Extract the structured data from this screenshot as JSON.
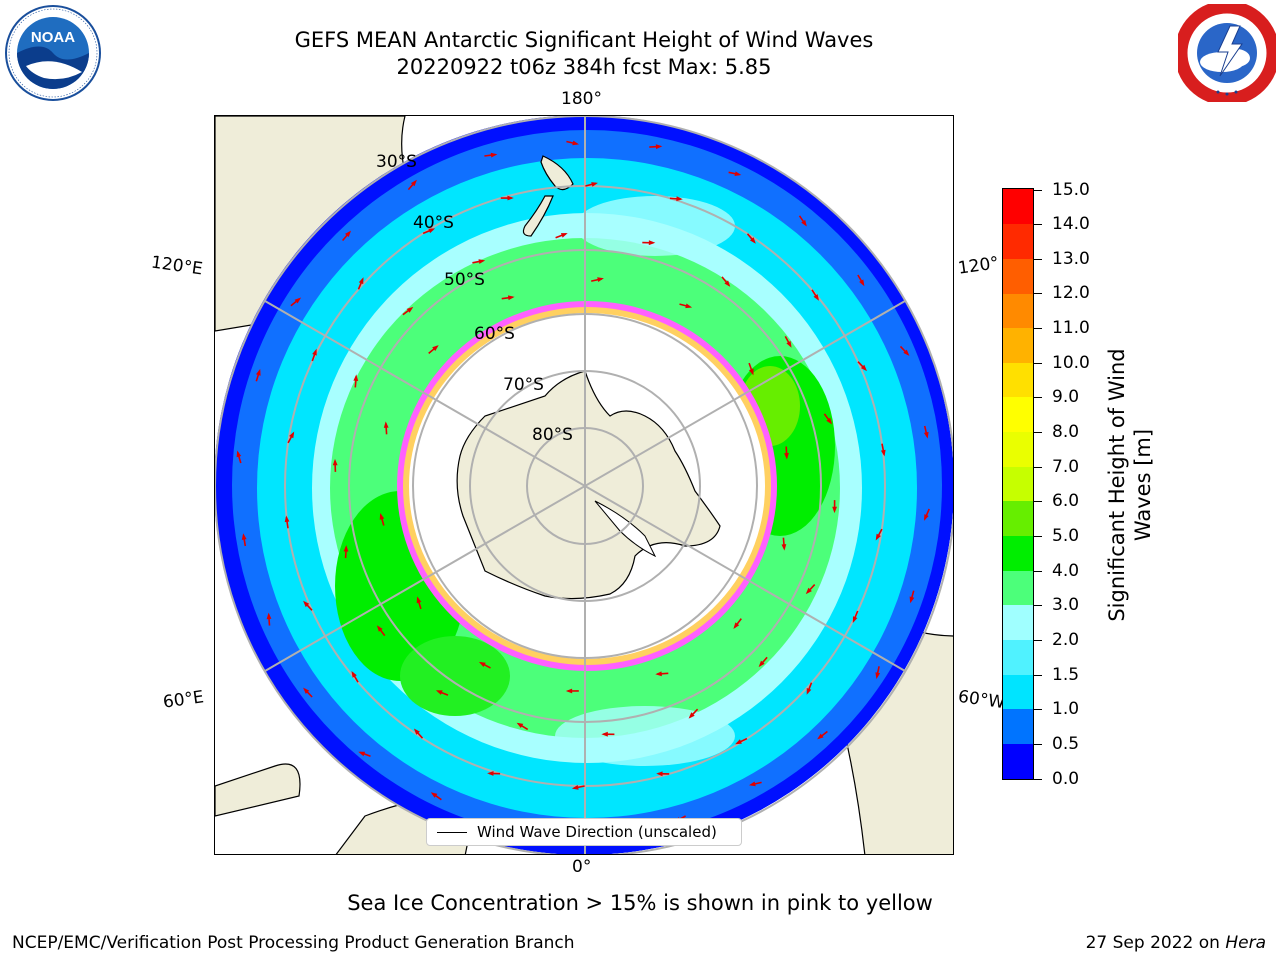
{
  "header": {
    "title_line1": "GEFS MEAN Antarctic Significant Height of Wind Waves",
    "title_line2": "20220922 t06z 384h fcst   Max: 5.85"
  },
  "logos": {
    "left": "NOAA",
    "right": "NATIONAL WEATHER SERVICE"
  },
  "map": {
    "projection": "south-polar-stereographic",
    "longitude_labels": {
      "top": "180°",
      "upper_left": "120°E",
      "upper_right": "120°",
      "lower_left": "60°E",
      "lower_right": "60°W",
      "bottom": "0°"
    },
    "latitude_labels": [
      "30°S",
      "40°S",
      "50°S",
      "60°S",
      "70°S",
      "80°S"
    ],
    "colors": {
      "land": "#efedd9",
      "sea_ice_free_pole": "#ffffff",
      "grid": "#b0b0b0",
      "arrow": "#e00000"
    }
  },
  "legend": {
    "label": "Wind Wave Direction (unscaled)"
  },
  "colorbar": {
    "title": "Significant Height of Wind Waves [m]",
    "tick_labels": [
      "0.0",
      "0.5",
      "1.0",
      "1.5",
      "2.0",
      "3.0",
      "4.0",
      "5.0",
      "6.0",
      "7.0",
      "8.0",
      "9.0",
      "10.0",
      "11.0",
      "12.0",
      "13.0",
      "14.0",
      "15.0"
    ],
    "colors": [
      "#0000ff",
      "#0074ff",
      "#00e4ff",
      "#50f2ff",
      "#a0ffff",
      "#4cff7a",
      "#00ee00",
      "#66ee00",
      "#c6ff00",
      "#eaff00",
      "#ffff00",
      "#ffe000",
      "#ffb200",
      "#ff8a00",
      "#ff5e00",
      "#ff2a00",
      "#ff0000"
    ]
  },
  "footer": {
    "note": "Sea Ice Concentration > 15% is shown in pink to yellow",
    "credit": "NCEP/EMC/Verification Post Processing Product Generation Branch",
    "date": "27 Sep 2022 on",
    "system": "Hera"
  }
}
